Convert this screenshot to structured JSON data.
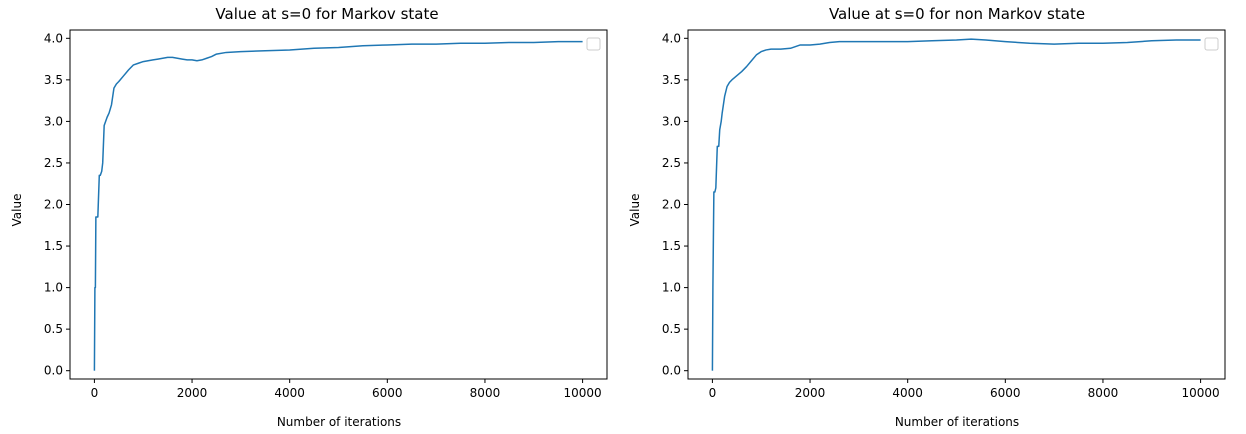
{
  "chart_data": [
    {
      "type": "line",
      "title": "Value at s=0 for Markov state",
      "xlabel": "Number of iterations",
      "ylabel": "Value",
      "xlim": [
        -500,
        10500
      ],
      "ylim": [
        -0.1,
        4.1
      ],
      "x_ticks": [
        "0",
        "2000",
        "4000",
        "6000",
        "8000",
        "10000"
      ],
      "y_ticks": [
        "0.0",
        "0.5",
        "1.0",
        "1.5",
        "2.0",
        "2.5",
        "3.0",
        "3.5",
        "4.0"
      ],
      "grid": false,
      "legend": "top-right (empty)",
      "color": "#1f77b4",
      "series": [
        {
          "x": [
            0,
            10,
            20,
            30,
            40,
            50,
            70,
            100,
            120,
            150,
            170,
            200,
            230,
            260,
            300,
            350,
            400,
            450,
            500,
            600,
            700,
            800,
            900,
            1000,
            1100,
            1200,
            1300,
            1400,
            1500,
            1600,
            1700,
            1800,
            1900,
            2000,
            2100,
            2200,
            2300,
            2400,
            2500,
            2700,
            3000,
            3500,
            4000,
            4500,
            5000,
            5500,
            6000,
            6500,
            7000,
            7500,
            8000,
            8500,
            9000,
            9500,
            10000
          ],
          "y": [
            0.0,
            1.0,
            1.0,
            1.85,
            1.85,
            1.85,
            1.85,
            2.35,
            2.35,
            2.4,
            2.5,
            2.95,
            3.0,
            3.05,
            3.1,
            3.2,
            3.4,
            3.45,
            3.48,
            3.55,
            3.62,
            3.68,
            3.7,
            3.72,
            3.73,
            3.74,
            3.75,
            3.76,
            3.77,
            3.77,
            3.76,
            3.75,
            3.74,
            3.74,
            3.73,
            3.74,
            3.76,
            3.78,
            3.81,
            3.83,
            3.84,
            3.85,
            3.86,
            3.88,
            3.89,
            3.91,
            3.92,
            3.93,
            3.93,
            3.94,
            3.94,
            3.95,
            3.95,
            3.96,
            3.96
          ]
        }
      ]
    },
    {
      "type": "line",
      "title": "Value at s=0 for non Markov state",
      "xlabel": "Number of iterations",
      "ylabel": "Value",
      "xlim": [
        -500,
        10500
      ],
      "ylim": [
        -0.1,
        4.1
      ],
      "x_ticks": [
        "0",
        "2000",
        "4000",
        "6000",
        "8000",
        "10000"
      ],
      "y_ticks": [
        "0.0",
        "0.5",
        "1.0",
        "1.5",
        "2.0",
        "2.5",
        "3.0",
        "3.5",
        "4.0"
      ],
      "grid": false,
      "legend": "top-right (empty)",
      "color": "#1f77b4",
      "series": [
        {
          "x": [
            0,
            10,
            20,
            30,
            50,
            70,
            100,
            130,
            150,
            180,
            200,
            250,
            300,
            350,
            400,
            500,
            600,
            700,
            800,
            900,
            1000,
            1100,
            1200,
            1400,
            1600,
            1800,
            2000,
            2200,
            2400,
            2600,
            3000,
            3500,
            4000,
            4500,
            5000,
            5300,
            5600,
            6000,
            6500,
            7000,
            7500,
            8000,
            8500,
            9000,
            9500,
            10000
          ],
          "y": [
            0.0,
            1.0,
            1.6,
            2.15,
            2.15,
            2.2,
            2.7,
            2.7,
            2.9,
            3.0,
            3.1,
            3.3,
            3.42,
            3.47,
            3.5,
            3.55,
            3.6,
            3.66,
            3.73,
            3.8,
            3.84,
            3.86,
            3.87,
            3.87,
            3.88,
            3.92,
            3.92,
            3.93,
            3.95,
            3.96,
            3.96,
            3.96,
            3.96,
            3.97,
            3.98,
            3.99,
            3.98,
            3.96,
            3.94,
            3.93,
            3.94,
            3.94,
            3.95,
            3.97,
            3.98,
            3.98
          ]
        }
      ]
    }
  ]
}
